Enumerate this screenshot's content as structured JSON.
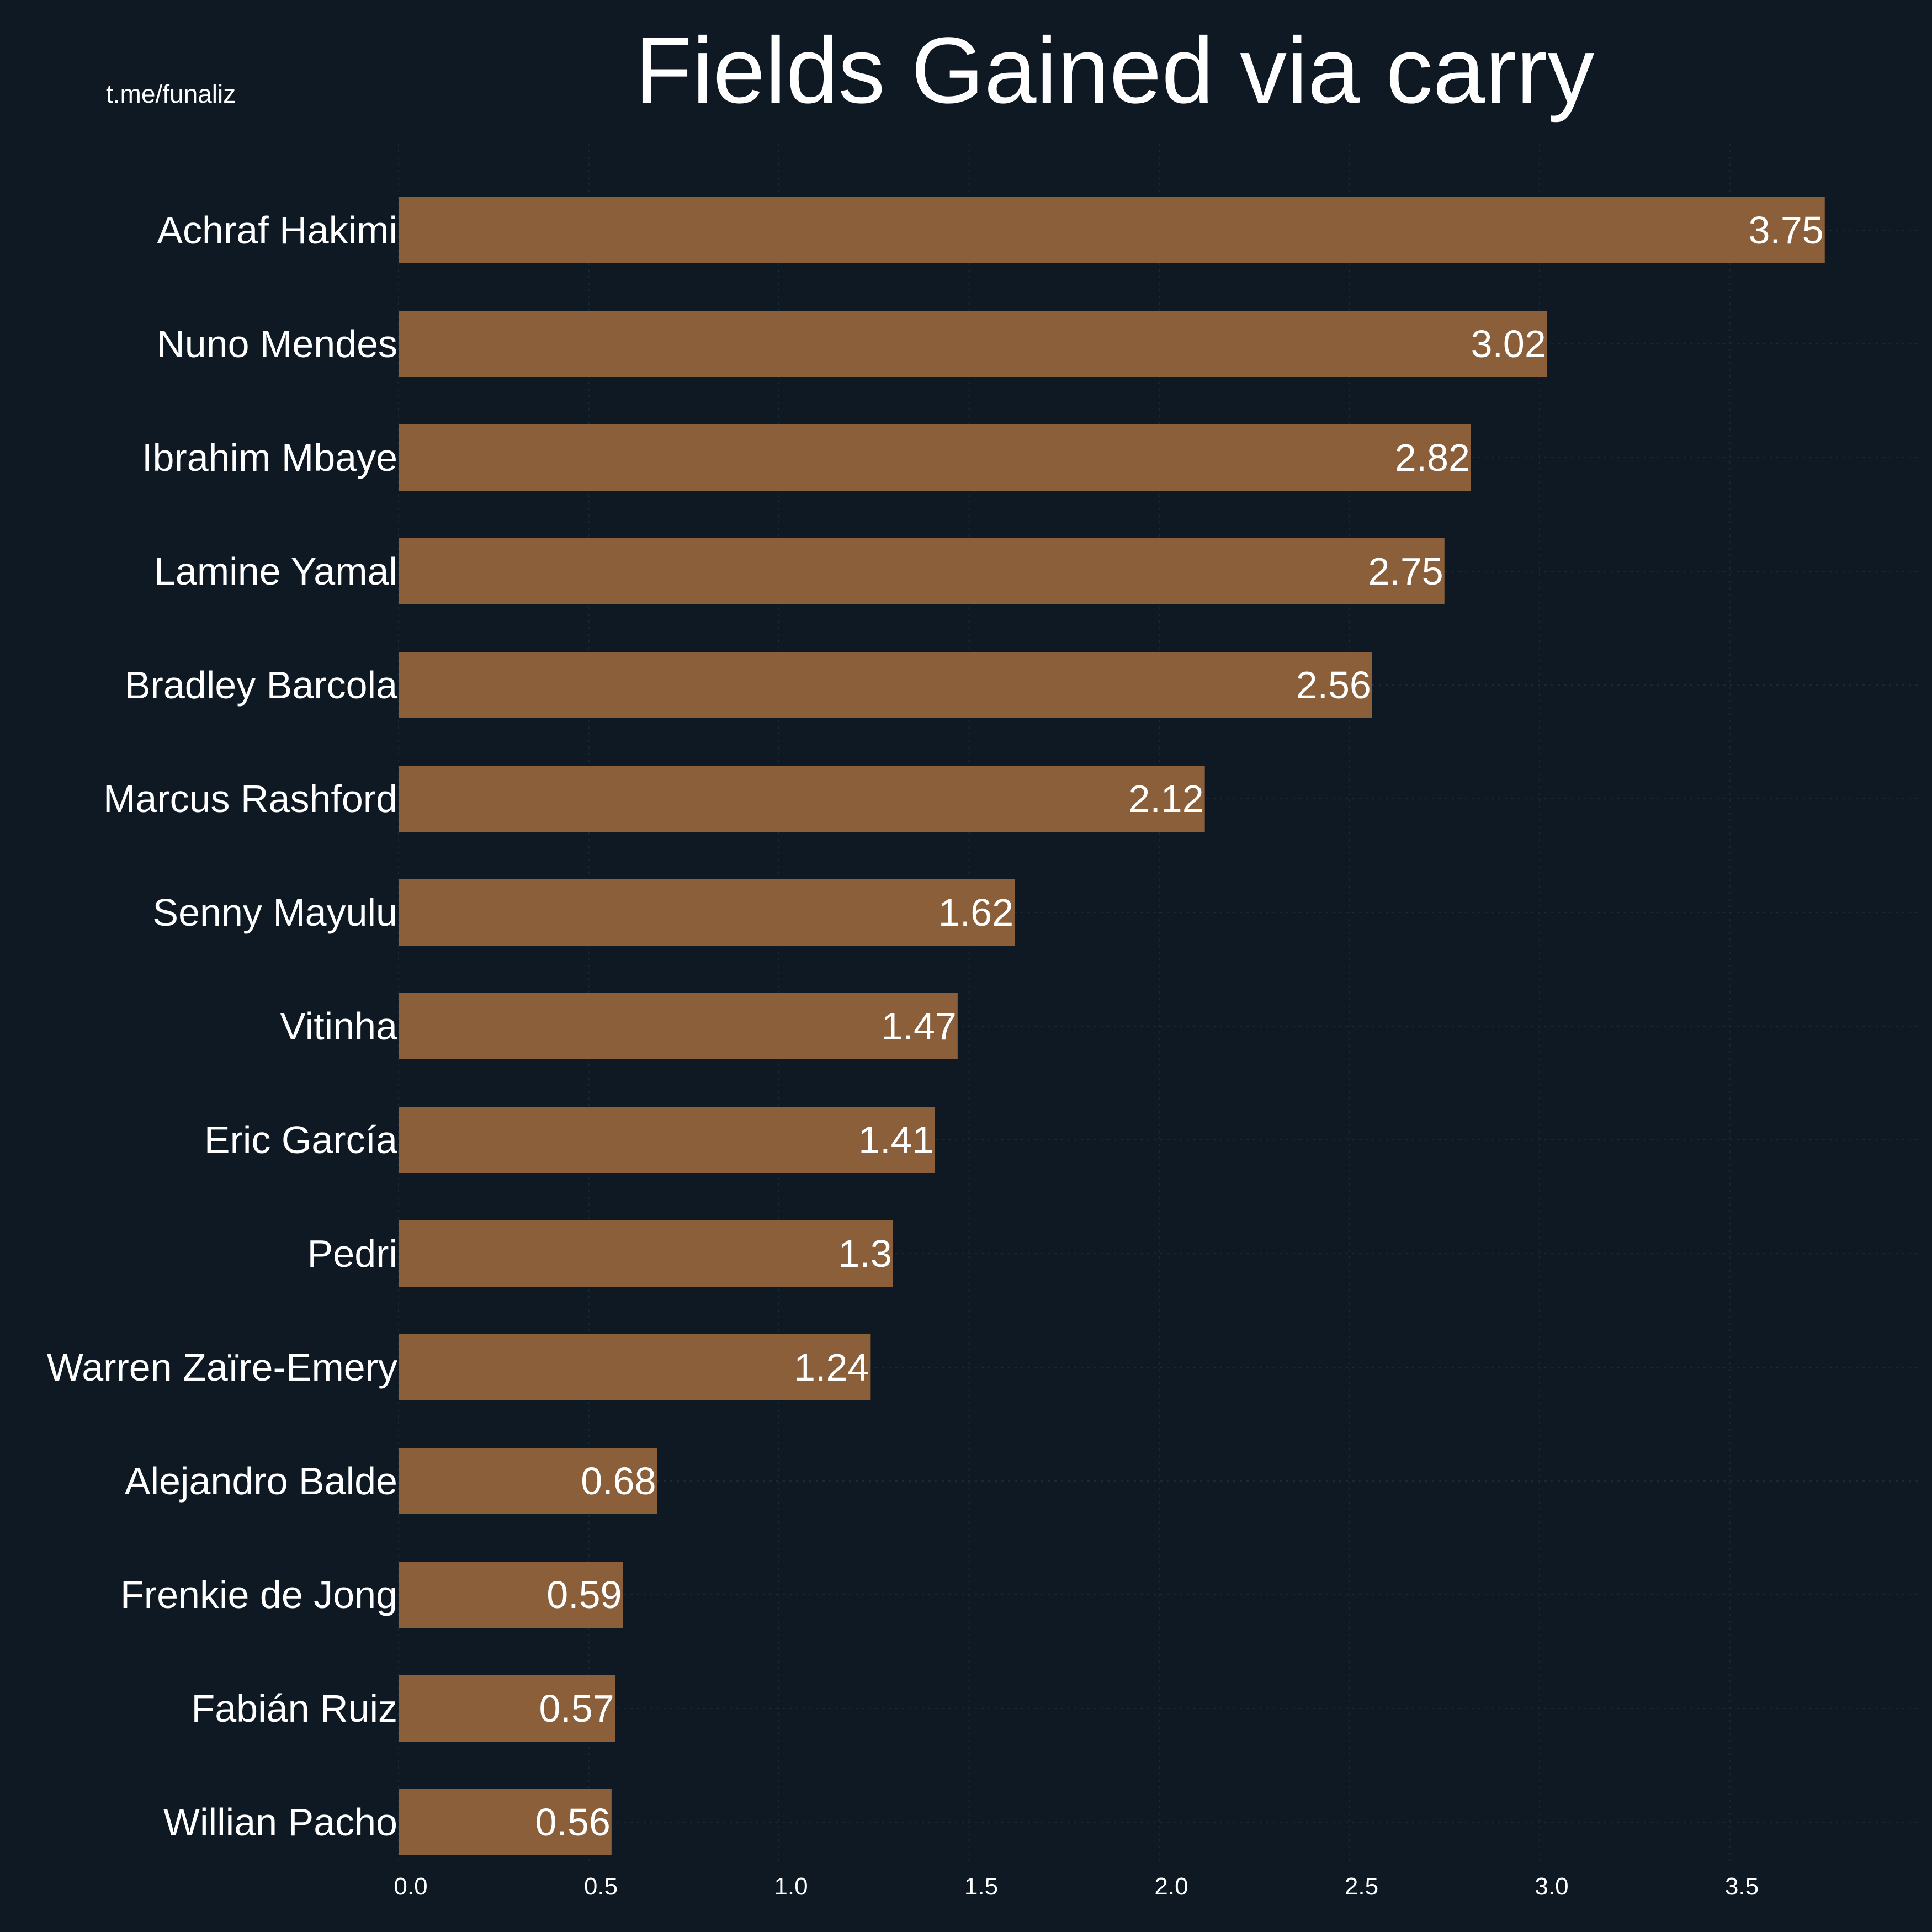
{
  "title": "Fields Gained via carry",
  "watermark": "t.me/funaliz",
  "colors": {
    "background": "#0f1923",
    "bar": "#8a5f39",
    "text": "#ffffff",
    "grid": "#1c2833"
  },
  "chart_data": {
    "type": "bar",
    "orientation": "horizontal",
    "title": "Fields Gained via carry",
    "xlabel": "",
    "ylabel": "",
    "categories": [
      "Achraf Hakimi",
      "Nuno Mendes",
      "Ibrahim Mbaye",
      "Lamine Yamal",
      "Bradley Barcola",
      "Marcus Rashford",
      "Senny Mayulu",
      "Vitinha",
      "Eric García",
      "Pedri",
      "Warren Zaïre-Emery",
      "Alejandro Balde",
      "Frenkie de Jong",
      "Fabián Ruiz",
      "Willian Pacho"
    ],
    "values": [
      3.75,
      3.02,
      2.82,
      2.75,
      2.56,
      2.12,
      1.62,
      1.47,
      1.41,
      1.3,
      1.24,
      0.68,
      0.59,
      0.57,
      0.56
    ],
    "value_labels": [
      "3.75",
      "3.02",
      "2.82",
      "2.75",
      "2.56",
      "2.12",
      "1.62",
      "1.47",
      "1.41",
      "1.3",
      "1.24",
      "0.68",
      "0.59",
      "0.57",
      "0.56"
    ],
    "xticks": [
      "0.0",
      "0.5",
      "1.0",
      "1.5",
      "2.0",
      "2.5",
      "3.0",
      "3.5"
    ],
    "xtick_values": [
      0,
      0.5,
      1.0,
      1.5,
      2.0,
      2.5,
      3.0,
      3.5
    ],
    "xlim": [
      0,
      3.93
    ],
    "grid": true,
    "legend": "none"
  }
}
